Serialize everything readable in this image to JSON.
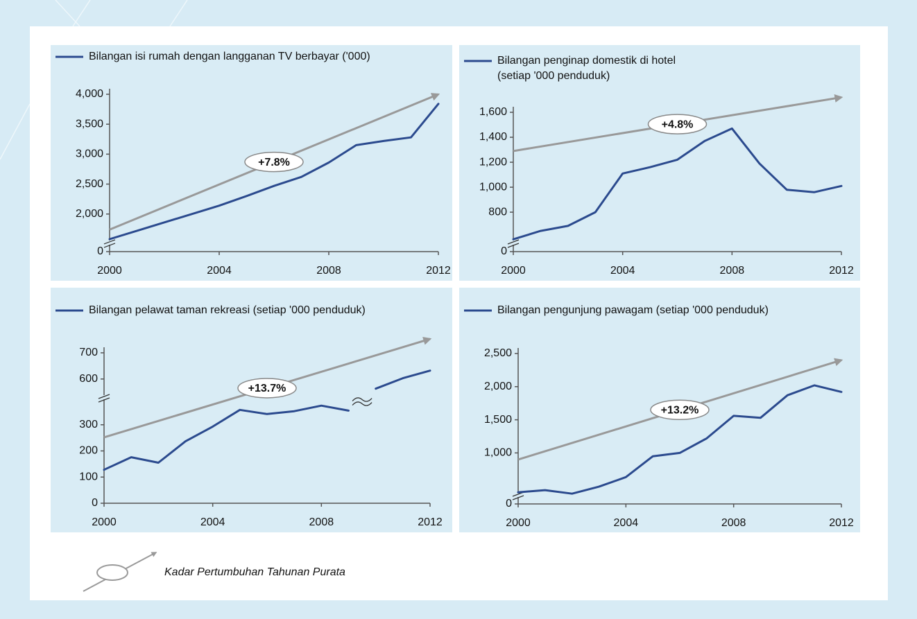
{
  "chart_data": [
    {
      "type": "line",
      "x": [
        2000,
        2001,
        2002,
        2003,
        2004,
        2005,
        2006,
        2007,
        2008,
        2009,
        2010,
        2011,
        2012
      ],
      "series": [
        {
          "name": "Bilangan isi rumah dengan langganan TV berbayar ('000)",
          "color": "#2b4a8e",
          "values": [
            1580,
            1720,
            1860,
            2000,
            2140,
            2300,
            2470,
            2620,
            2860,
            3150,
            3220,
            3280,
            3840
          ]
        }
      ],
      "trend": {
        "x": [
          2000,
          2012
        ],
        "values": [
          1740,
          4000
        ],
        "label": "+7.8%",
        "color": "#999999"
      },
      "xlim": [
        2000,
        2012
      ],
      "xticks": [
        2000,
        2004,
        2008,
        2012
      ],
      "ylim": [
        0,
        4000
      ],
      "ybreak": [
        128,
        1500
      ],
      "yticks": [
        0,
        {
          "value": 2000,
          "label": "2,000"
        },
        {
          "value": 2500,
          "label": "2,500"
        },
        {
          "value": 3000,
          "label": "3,000"
        },
        {
          "value": 3500,
          "label": "3,500"
        },
        {
          "value": 4000,
          "label": "4,000"
        }
      ]
    },
    {
      "type": "line",
      "x": [
        2000,
        2001,
        2002,
        2003,
        2004,
        2005,
        2006,
        2007,
        2008,
        2009,
        2010,
        2011,
        2012
      ],
      "series": [
        {
          "name": "Bilangan penginap domestik  di hotel (setiap '000 penduduk)",
          "color": "#2b4a8e",
          "values": [
            583,
            650,
            690,
            800,
            1110,
            1160,
            1220,
            1370,
            1470,
            1190,
            980,
            960,
            1010
          ]
        }
      ],
      "trend": {
        "x": [
          2000,
          2012
        ],
        "values": [
          1290,
          1720
        ],
        "label": "+4.8%",
        "color": "#999999"
      },
      "xlim": [
        2000,
        2012
      ],
      "xticks": [
        2000,
        2004,
        2008,
        2012
      ],
      "ylim": [
        0,
        1600
      ],
      "ybreak": [
        61,
        545
      ],
      "yticks": [
        0,
        800,
        {
          "value": 1000,
          "label": "1,000"
        },
        {
          "value": 1200,
          "label": "1,200"
        },
        {
          "value": 1400,
          "label": "1,400"
        },
        {
          "value": 1600,
          "label": "1,600"
        }
      ]
    },
    {
      "type": "line",
      "x": [
        2000,
        2001,
        2002,
        2003,
        2004,
        2005,
        2006,
        2007,
        2008,
        2009,
        2009.5,
        2010,
        2011,
        2012
      ],
      "series": [
        {
          "name": "Bilangan pelawat taman rekreasi (setiap '000 penduduk)",
          "color": "#2b4a8e",
          "values": [
            128,
            176,
            155,
            237,
            293,
            357,
            341,
            352,
            373,
            354,
            null,
            563,
            603,
            632
          ]
        }
      ],
      "trend": {
        "x": [
          2000,
          2012
        ],
        "values": [
          252,
          753
        ],
        "label": "+13.7%",
        "color": "#999999"
      },
      "xlim": [
        2000,
        2012
      ],
      "xticks": [
        2000,
        2004,
        2008,
        2012
      ],
      "ylim": [
        0,
        700
      ],
      "ybreak": [
        400,
        525
      ],
      "yticks": [
        0,
        100,
        200,
        300,
        600,
        700
      ]
    },
    {
      "type": "line",
      "x": [
        2000,
        2001,
        2002,
        2003,
        2004,
        2005,
        2006,
        2007,
        2008,
        2009,
        2010,
        2011,
        2012
      ],
      "series": [
        {
          "name": "Bilangan pengunjung pawagam (setiap '000 penduduk)",
          "color": "#2b4a8e",
          "values": [
            406,
            438,
            385,
            490,
            635,
            950,
            1000,
            1220,
            1560,
            1530,
            1870,
            2020,
            1920
          ]
        }
      ],
      "trend": {
        "x": [
          2000,
          2012
        ],
        "values": [
          900,
          2400
        ],
        "label": "+13.2%",
        "color": "#999999"
      },
      "xlim": [
        2000,
        2012
      ],
      "xticks": [
        2000,
        2004,
        2008,
        2012
      ],
      "ylim": [
        0,
        2500
      ],
      "ybreak": [
        115,
        345
      ],
      "yticks": [
        0,
        {
          "value": 1000,
          "label": "1,000"
        },
        {
          "value": 1500,
          "label": "1,500"
        },
        {
          "value": 2000,
          "label": "2,000"
        },
        {
          "value": 2500,
          "label": "2,500"
        }
      ]
    }
  ],
  "footnote": "Kadar Pertumbuhan Tahunan Purata"
}
